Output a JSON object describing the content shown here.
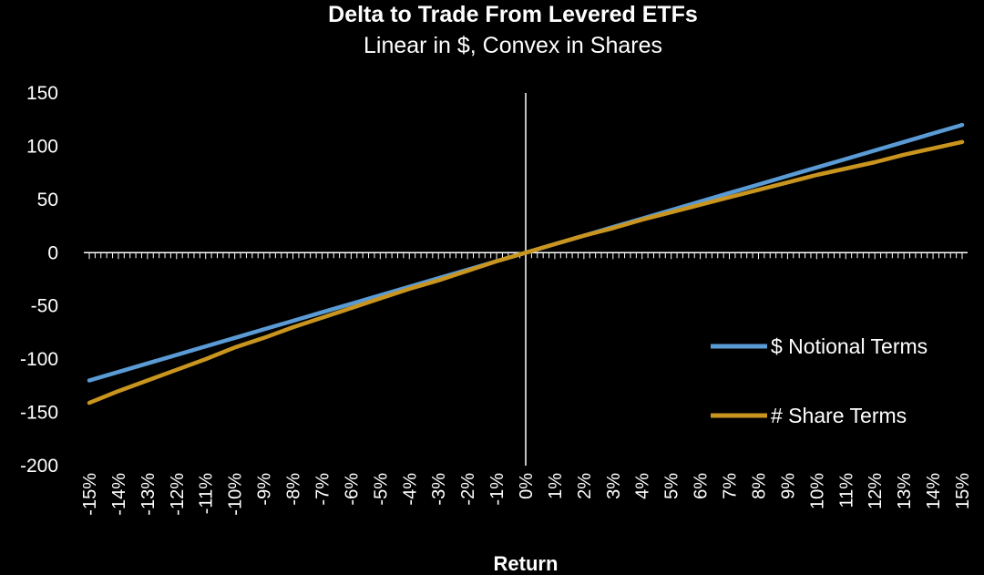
{
  "chart_data": {
    "type": "line",
    "title": "Delta to Trade From Levered ETFs",
    "subtitle": "Linear in $, Convex in Shares",
    "xlabel": "Return",
    "ylabel": "",
    "x": [
      -15,
      -14,
      -13,
      -12,
      -11,
      -10,
      -9,
      -8,
      -7,
      -6,
      -5,
      -4,
      -3,
      -2,
      -1,
      0,
      1,
      2,
      3,
      4,
      5,
      6,
      7,
      8,
      9,
      10,
      11,
      12,
      13,
      14,
      15
    ],
    "x_tick_labels": [
      "-15%",
      "-14%",
      "-13%",
      "-12%",
      "-11%",
      "-10%",
      "-9%",
      "-8%",
      "-7%",
      "-6%",
      "-5%",
      "-4%",
      "-3%",
      "-2%",
      "-1%",
      "0%",
      "1%",
      "2%",
      "3%",
      "4%",
      "5%",
      "6%",
      "7%",
      "8%",
      "9%",
      "10%",
      "11%",
      "12%",
      "13%",
      "14%",
      "15%"
    ],
    "y_tick_labels": [
      "150",
      "100",
      "50",
      "0",
      "-50",
      "-100",
      "-150",
      "-200"
    ],
    "y_ticks": [
      150,
      100,
      50,
      0,
      -50,
      -100,
      -150,
      -200
    ],
    "ylim": [
      -200,
      150
    ],
    "xlim": [
      -15,
      15
    ],
    "grid": false,
    "legend_position": "right",
    "series": [
      {
        "name": "$ Notional Terms",
        "color": "#5b9bd5",
        "values": [
          -120,
          -112,
          -104,
          -96,
          -88,
          -80,
          -72,
          -64,
          -56,
          -48,
          -40,
          -32,
          -24,
          -16,
          -8,
          0,
          8,
          16,
          24,
          32,
          40,
          48,
          56,
          64,
          72,
          80,
          88,
          96,
          104,
          112,
          120
        ]
      },
      {
        "name": "# Share Terms",
        "color": "#c9951f",
        "values": [
          -141,
          -130,
          -120,
          -110,
          -100,
          -89,
          -80,
          -70,
          -61,
          -52,
          -43,
          -34,
          -26,
          -17,
          -8,
          0,
          8,
          16,
          23,
          31,
          38,
          45,
          52,
          59,
          66,
          73,
          79,
          85,
          92,
          98,
          104
        ]
      }
    ]
  }
}
